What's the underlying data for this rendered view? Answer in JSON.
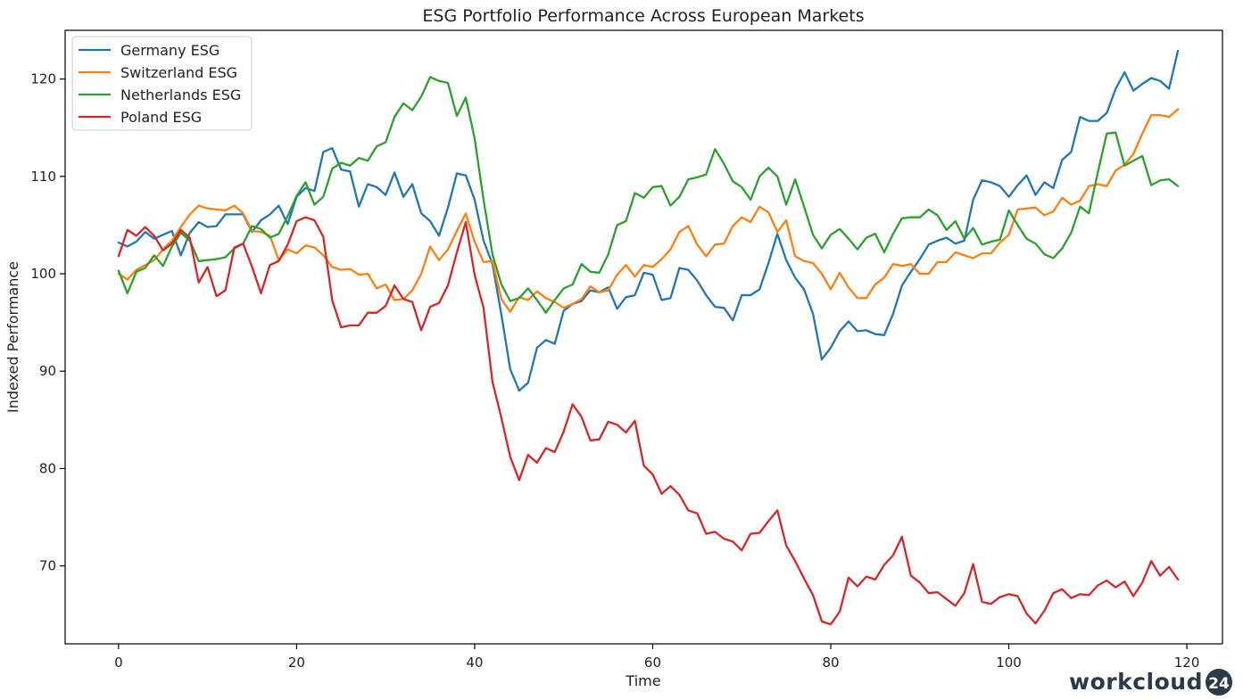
{
  "chart_data": {
    "type": "line",
    "title": "ESG Portfolio Performance Across European Markets",
    "xlabel": "Time",
    "ylabel": "Indexed Performance",
    "xlim": [
      -6,
      124
    ],
    "ylim": [
      62,
      125
    ],
    "xticks": [
      0,
      20,
      40,
      60,
      80,
      100,
      120
    ],
    "yticks": [
      70,
      80,
      90,
      100,
      110,
      120
    ],
    "legend_position": "upper-left",
    "grid": false,
    "series": [
      {
        "name": "Germany ESG",
        "color": "#1f77b4",
        "values": [
          103.2,
          102.8,
          103.3,
          104.3,
          103.6,
          104.0,
          104.4,
          101.9,
          104.2,
          105.3,
          104.8,
          104.9,
          106.1,
          106.1,
          106.1,
          104.3,
          105.5,
          106.1,
          107.0,
          105.1,
          107.9,
          108.8,
          108.5,
          112.5,
          112.9,
          110.7,
          110.5,
          106.9,
          109.2,
          108.9,
          108.1,
          110.4,
          107.9,
          109.2,
          106.2,
          105.4,
          103.9,
          106.8,
          110.3,
          110.1,
          107.6,
          103.4,
          101.0,
          95.8,
          90.2,
          88.0,
          88.8,
          92.4,
          93.2,
          92.8,
          96.2,
          96.9,
          97.2,
          98.3,
          98.1,
          98.6,
          96.4,
          97.6,
          97.8,
          100.1,
          99.9,
          97.3,
          97.5,
          100.6,
          100.4,
          99.3,
          97.8,
          96.6,
          96.5,
          95.2,
          97.8,
          97.8,
          98.4,
          101.1,
          104.1,
          101.4,
          99.6,
          98.4,
          95.9,
          91.2,
          92.4,
          94.1,
          95.1,
          94.1,
          94.2,
          93.8,
          93.7,
          95.9,
          98.8,
          100.2,
          101.5,
          103.0,
          103.4,
          103.7,
          103.1,
          103.4,
          107.6,
          109.6,
          109.4,
          109.0,
          107.9,
          109.1,
          110.1,
          108.1,
          109.4,
          108.8,
          111.7,
          112.5,
          116.1,
          115.7,
          115.7,
          116.5,
          119.0,
          120.7,
          118.8,
          119.5,
          120.1,
          119.8,
          119.0,
          122.9
        ]
      },
      {
        "name": "Switzerland ESG",
        "color": "#ff7f0e",
        "values": [
          100.0,
          99.4,
          100.4,
          100.9,
          101.4,
          102.5,
          103.4,
          104.8,
          106.1,
          107.0,
          106.7,
          106.6,
          106.5,
          107.0,
          106.2,
          104.4,
          104.3,
          103.9,
          101.4,
          102.5,
          102.1,
          102.9,
          102.7,
          101.9,
          100.7,
          100.4,
          100.5,
          99.9,
          100.0,
          98.5,
          98.9,
          97.3,
          97.4,
          98.3,
          100.0,
          102.8,
          101.4,
          102.5,
          104.4,
          106.2,
          103.3,
          101.2,
          101.3,
          97.4,
          96.1,
          97.6,
          97.3,
          98.2,
          97.5,
          97.1,
          96.5,
          96.9,
          97.4,
          98.7,
          98.1,
          98.3,
          99.9,
          100.9,
          99.7,
          100.9,
          100.7,
          101.5,
          102.5,
          104.3,
          104.9,
          103.0,
          101.8,
          103.0,
          103.1,
          104.9,
          105.8,
          105.3,
          106.9,
          106.3,
          104.3,
          105.5,
          101.8,
          101.3,
          101.1,
          100.0,
          98.4,
          100.1,
          98.6,
          97.5,
          97.5,
          98.9,
          99.6,
          101.0,
          100.8,
          101.0,
          100.0,
          100.0,
          101.2,
          101.2,
          102.2,
          101.9,
          101.6,
          102.1,
          102.1,
          103.2,
          104.0,
          106.6,
          106.7,
          106.8,
          106.0,
          106.4,
          107.8,
          107.1,
          107.5,
          109.0,
          109.2,
          109.0,
          110.6,
          111.2,
          112.3,
          114.4,
          116.3,
          116.3,
          116.1,
          116.9
        ]
      },
      {
        "name": "Netherlands ESG",
        "color": "#2ca02c",
        "values": [
          100.3,
          98.0,
          100.2,
          100.6,
          101.9,
          100.8,
          102.8,
          104.2,
          103.4,
          101.3,
          101.4,
          101.5,
          101.7,
          102.6,
          103.1,
          104.9,
          104.6,
          103.7,
          104.1,
          105.9,
          108.0,
          109.4,
          107.1,
          107.9,
          110.8,
          111.4,
          111.1,
          111.9,
          111.6,
          113.1,
          113.5,
          116.1,
          117.5,
          116.8,
          118.2,
          120.2,
          119.8,
          119.6,
          116.2,
          118.1,
          113.9,
          107.6,
          102.0,
          98.9,
          97.2,
          97.5,
          98.5,
          97.3,
          96.0,
          97.3,
          98.5,
          98.9,
          101.0,
          100.2,
          100.1,
          102.0,
          105.0,
          105.4,
          108.3,
          107.8,
          108.9,
          109.0,
          107.0,
          107.9,
          109.7,
          109.9,
          110.2,
          112.8,
          111.3,
          109.5,
          108.9,
          107.6,
          110.0,
          110.9,
          110.0,
          107.1,
          109.7,
          106.9,
          104.0,
          102.6,
          104.0,
          104.6,
          103.6,
          102.5,
          103.7,
          104.1,
          102.2,
          104.1,
          105.7,
          105.8,
          105.8,
          106.6,
          106.0,
          104.5,
          105.4,
          103.6,
          104.7,
          103.0,
          103.3,
          103.5,
          106.5,
          105.0,
          103.6,
          103.1,
          102.0,
          101.6,
          102.6,
          104.2,
          106.9,
          106.2,
          110.4,
          114.4,
          114.5,
          111.1,
          111.6,
          112.1,
          109.1,
          109.6,
          109.7,
          109.0
        ]
      },
      {
        "name": "Poland ESG",
        "color": "#d62728",
        "values": [
          101.8,
          104.5,
          103.9,
          104.8,
          103.9,
          102.4,
          103.1,
          104.5,
          103.7,
          99.1,
          100.7,
          97.7,
          98.3,
          102.7,
          103.1,
          100.7,
          98.0,
          100.9,
          101.3,
          103.0,
          105.4,
          105.8,
          105.5,
          103.8,
          97.3,
          94.5,
          94.7,
          94.7,
          96.0,
          96.0,
          96.7,
          98.8,
          97.4,
          97.1,
          94.2,
          96.6,
          97.0,
          98.8,
          102.2,
          105.3,
          99.9,
          96.5,
          88.9,
          85.2,
          81.2,
          78.8,
          81.4,
          80.6,
          82.1,
          81.7,
          83.8,
          86.6,
          85.3,
          82.9,
          83.0,
          84.8,
          84.5,
          83.7,
          84.9,
          80.3,
          79.4,
          77.4,
          78.2,
          77.3,
          75.7,
          75.4,
          73.3,
          73.5,
          72.8,
          72.5,
          71.6,
          73.3,
          73.4,
          74.6,
          75.7,
          72.1,
          70.5,
          68.7,
          67.0,
          64.3,
          64.0,
          65.3,
          68.8,
          67.9,
          68.9,
          68.6,
          70.1,
          71.1,
          73.0,
          69.0,
          68.3,
          67.2,
          67.3,
          66.6,
          65.9,
          67.2,
          70.2,
          66.3,
          66.1,
          66.8,
          67.1,
          66.9,
          65.1,
          64.1,
          65.4,
          67.2,
          67.6,
          66.7,
          67.1,
          67.0,
          68.0,
          68.5,
          67.8,
          68.4,
          66.9,
          68.3,
          70.5,
          69.0,
          69.9,
          68.6
        ]
      }
    ]
  },
  "brand": {
    "text": "workcloud",
    "badge": "24"
  }
}
